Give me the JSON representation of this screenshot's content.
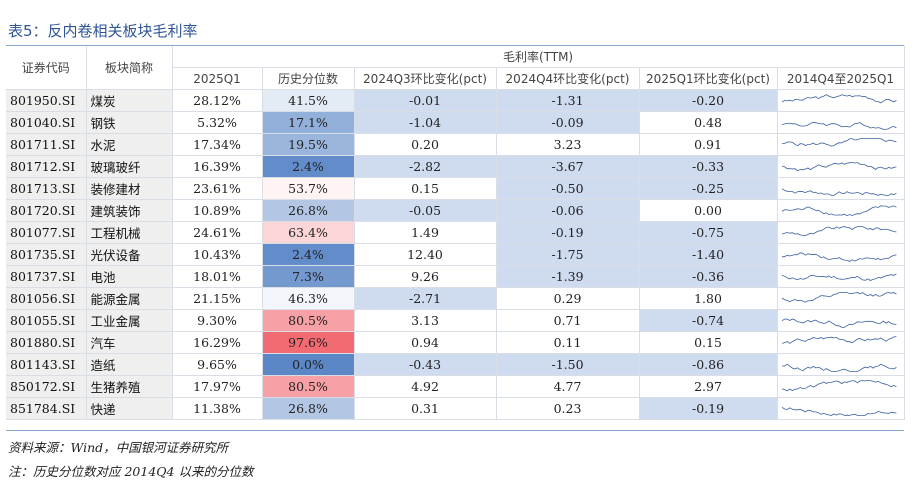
{
  "title": "表5：反内卷相关板块毛利率",
  "headers": {
    "code": "证券代码",
    "name": "板块简称",
    "group": "毛利率(TTM)",
    "c1": "2025Q1",
    "c2": "历史分位数",
    "c3": "2024Q3环比变化(pct)",
    "c4": "2024Q4环比变化(pct)",
    "c5": "2025Q1环比变化(pct)",
    "c6": "2014Q4至2025Q1"
  },
  "rows": [
    {
      "code": "801950.SI",
      "name": "煤炭",
      "q1": "28.12%",
      "pct": "41.5%",
      "pctv": 0.415,
      "d3": "-0.01",
      "d4": "-1.31",
      "d5": "-0.20"
    },
    {
      "code": "801040.SI",
      "name": "钢铁",
      "q1": "5.32%",
      "pct": "17.1%",
      "pctv": 0.171,
      "d3": "-1.04",
      "d4": "-0.09",
      "d5": "0.48"
    },
    {
      "code": "801711.SI",
      "name": "水泥",
      "q1": "17.34%",
      "pct": "19.5%",
      "pctv": 0.195,
      "d3": "0.20",
      "d4": "3.23",
      "d5": "0.91"
    },
    {
      "code": "801712.SI",
      "name": "玻璃玻纤",
      "q1": "16.39%",
      "pct": "2.4%",
      "pctv": 0.024,
      "d3": "-2.82",
      "d4": "-3.67",
      "d5": "-0.33"
    },
    {
      "code": "801713.SI",
      "name": "装修建材",
      "q1": "23.61%",
      "pct": "53.7%",
      "pctv": 0.537,
      "d3": "0.15",
      "d4": "-0.50",
      "d5": "-0.25"
    },
    {
      "code": "801720.SI",
      "name": "建筑装饰",
      "q1": "10.89%",
      "pct": "26.8%",
      "pctv": 0.268,
      "d3": "-0.05",
      "d4": "-0.06",
      "d5": "0.00"
    },
    {
      "code": "801077.SI",
      "name": "工程机械",
      "q1": "24.61%",
      "pct": "63.4%",
      "pctv": 0.634,
      "d3": "1.49",
      "d4": "-0.19",
      "d5": "-0.75"
    },
    {
      "code": "801735.SI",
      "name": "光伏设备",
      "q1": "10.43%",
      "pct": "2.4%",
      "pctv": 0.024,
      "d3": "12.40",
      "d4": "-1.75",
      "d5": "-1.40"
    },
    {
      "code": "801737.SI",
      "name": "电池",
      "q1": "18.01%",
      "pct": "7.3%",
      "pctv": 0.073,
      "d3": "9.26",
      "d4": "-1.39",
      "d5": "-0.36"
    },
    {
      "code": "801056.SI",
      "name": "能源金属",
      "q1": "21.15%",
      "pct": "46.3%",
      "pctv": 0.463,
      "d3": "-2.71",
      "d4": "0.29",
      "d5": "1.80"
    },
    {
      "code": "801055.SI",
      "name": "工业金属",
      "q1": "9.30%",
      "pct": "80.5%",
      "pctv": 0.805,
      "d3": "3.13",
      "d4": "0.71",
      "d5": "-0.74"
    },
    {
      "code": "801880.SI",
      "name": "汽车",
      "q1": "16.29%",
      "pct": "97.6%",
      "pctv": 0.976,
      "d3": "0.94",
      "d4": "0.11",
      "d5": "0.15"
    },
    {
      "code": "801143.SI",
      "name": "造纸",
      "q1": "9.65%",
      "pct": "0.0%",
      "pctv": 0.0,
      "d3": "-0.43",
      "d4": "-1.50",
      "d5": "-0.86"
    },
    {
      "code": "850172.SI",
      "name": "生猪养殖",
      "q1": "17.97%",
      "pct": "80.5%",
      "pctv": 0.805,
      "d3": "4.92",
      "d4": "4.77",
      "d5": "2.97"
    },
    {
      "code": "851784.SI",
      "name": "快递",
      "q1": "11.38%",
      "pct": "26.8%",
      "pctv": 0.268,
      "d3": "0.31",
      "d4": "0.23",
      "d5": "-0.19"
    }
  ],
  "source": "资料来源：Wind，中国银河证券研究所",
  "note": "注：历史分位数对应 2014Q4 以来的分位数",
  "colors": {
    "negative": "#cfdcf0",
    "cold": "#5b87c7",
    "warm": "#f2646b",
    "mid": "#ffffff"
  }
}
